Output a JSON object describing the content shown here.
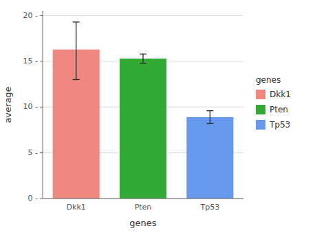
{
  "chart_data": {
    "type": "bar",
    "categories": [
      "Dkk1",
      "Pten",
      "Tp53"
    ],
    "values": [
      16.3,
      15.3,
      8.9
    ],
    "error_upper": [
      3.0,
      0.5,
      0.7
    ],
    "error_lower": [
      3.3,
      0.5,
      0.7
    ],
    "colors": [
      "#f08880",
      "#33aa33",
      "#6699ee"
    ],
    "x_label": "genes",
    "y_label": "average",
    "legend_title": "genes",
    "legend": "right",
    "ylim": [
      0,
      20.5
    ],
    "yticks": [
      {
        "value": 0,
        "label": "0 -"
      },
      {
        "value": 5,
        "label": "5 -"
      },
      {
        "value": 10,
        "label": "10 -"
      },
      {
        "value": 15,
        "label": "15 -"
      },
      {
        "value": 20,
        "label": "20 -"
      }
    ],
    "grid": true
  }
}
